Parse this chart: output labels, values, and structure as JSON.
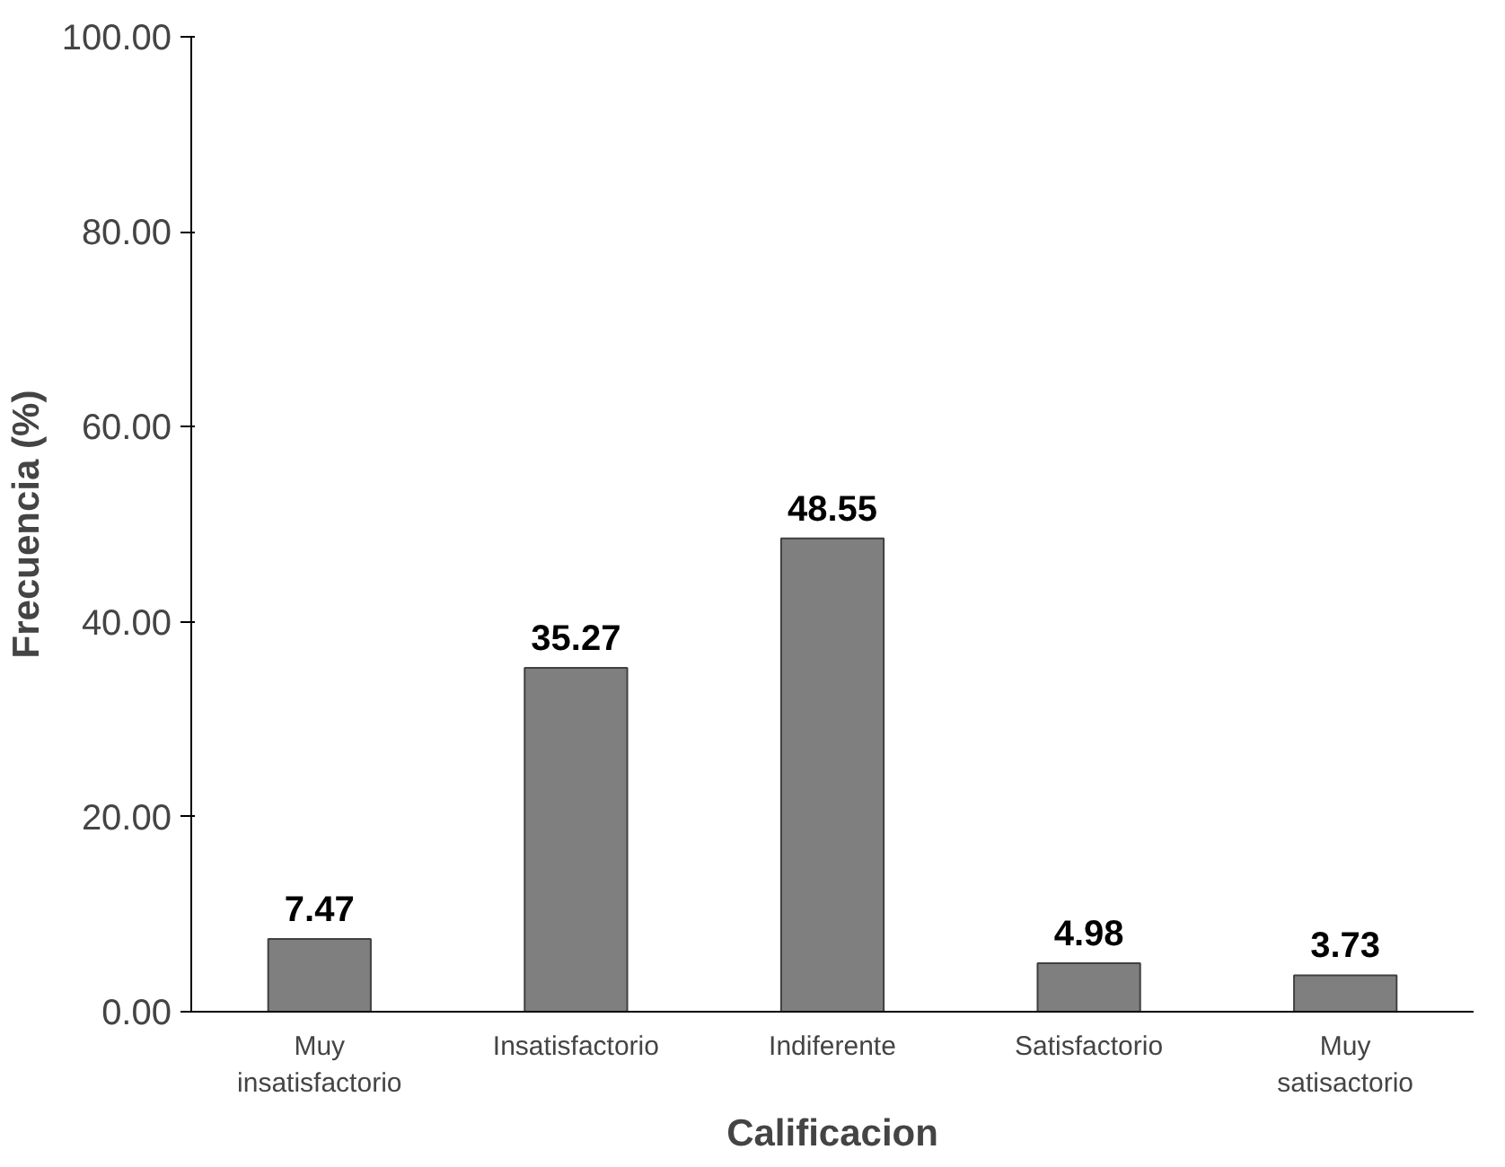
{
  "chart_data": {
    "type": "bar",
    "xlabel": "Calificacion",
    "ylabel": "Frecuencia (%)",
    "categories": [
      "Muy\ninsatisfactorio",
      "Insatisfactorio",
      "Indiferente",
      "Satisfactorio",
      "Muy\nsatisactorio"
    ],
    "values": [
      7.47,
      35.27,
      48.55,
      4.98,
      3.73
    ],
    "color": "#7f7f7f",
    "ylim": [
      0,
      100
    ],
    "yticks": [
      {
        "value": 0,
        "label": "0.00"
      },
      {
        "value": 20,
        "label": "20.00"
      },
      {
        "value": 40,
        "label": "40.00"
      },
      {
        "value": 60,
        "label": "60.00"
      },
      {
        "value": 80,
        "label": "80.00"
      },
      {
        "value": 100,
        "label": "100.00"
      }
    ],
    "data_labels": true,
    "grid": false
  }
}
